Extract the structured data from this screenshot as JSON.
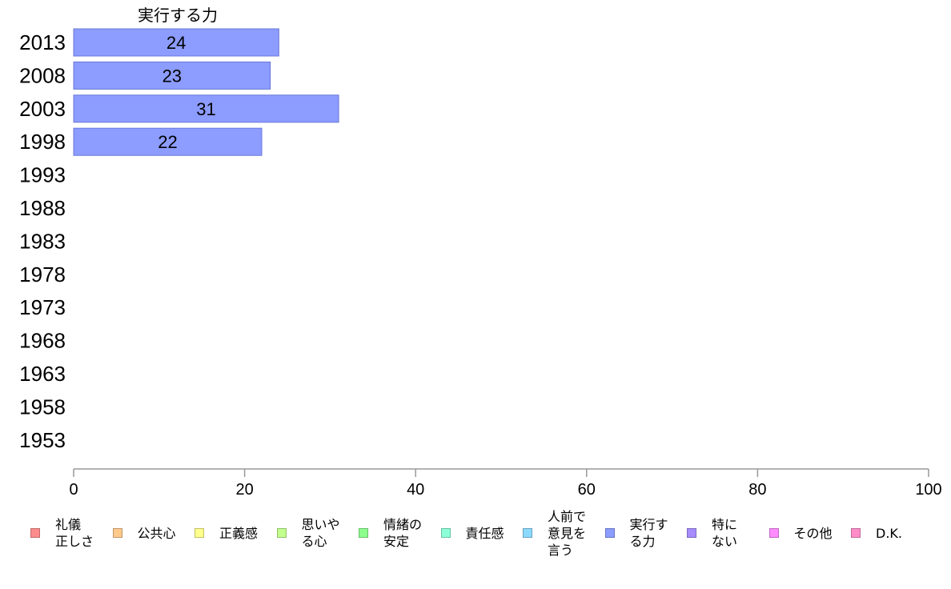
{
  "chart_data": {
    "type": "bar",
    "orientation": "horizontal",
    "title": "",
    "series_header": "実行する力",
    "categories": [
      "2013",
      "2008",
      "2003",
      "1998",
      "1993",
      "1988",
      "1983",
      "1978",
      "1973",
      "1968",
      "1963",
      "1958",
      "1953"
    ],
    "series": [
      {
        "name": "実行する力",
        "color": "#8c9cff",
        "values": [
          24,
          23,
          31,
          22,
          null,
          null,
          null,
          null,
          null,
          null,
          null,
          null,
          null
        ]
      }
    ],
    "xlim": [
      0,
      100
    ],
    "xticks": [
      "0",
      "20",
      "40",
      "60",
      "80",
      "100"
    ],
    "xlabel": "",
    "ylabel": "",
    "grid": false,
    "legend_position": "bottom",
    "legend": [
      {
        "label": "礼儀\n正しさ",
        "color": "#ff8c8c"
      },
      {
        "label": "公共心",
        "color": "#ffc98c"
      },
      {
        "label": "正義感",
        "color": "#ffff8c"
      },
      {
        "label": "思いや\nる心",
        "color": "#c2ff8c"
      },
      {
        "label": "情緒の\n安定",
        "color": "#8cff8c"
      },
      {
        "label": "責任感",
        "color": "#8cffd9"
      },
      {
        "label": "人前で\n意見を\n言う",
        "color": "#8cd9ff"
      },
      {
        "label": "実行す\nる力",
        "color": "#8c9cff"
      },
      {
        "label": "特に\nない",
        "color": "#a68cff"
      },
      {
        "label": "その他",
        "color": "#ff8cff"
      },
      {
        "label": "D.K.",
        "color": "#ff8cc9"
      }
    ]
  }
}
